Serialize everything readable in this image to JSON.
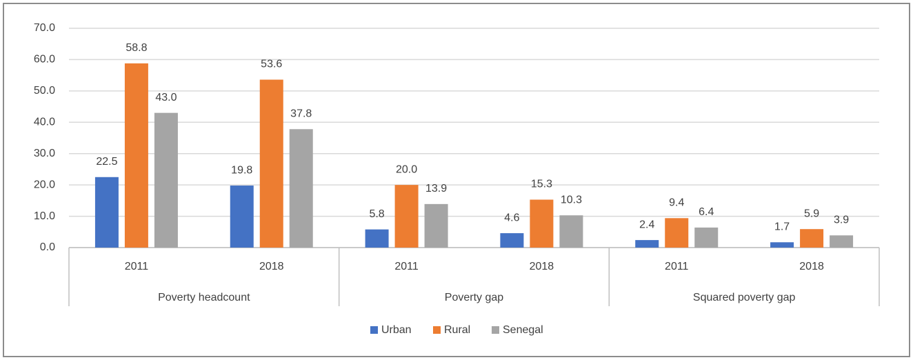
{
  "chart_data": {
    "type": "bar",
    "categories": [
      "2011",
      "2018",
      "2011",
      "2018",
      "2011",
      "2018"
    ],
    "category_groups": [
      "Poverty headcount",
      "Poverty gap",
      "Squared poverty gap"
    ],
    "series": [
      {
        "name": "Urban",
        "color": "#4472c4",
        "values": [
          22.5,
          19.8,
          5.8,
          4.6,
          2.4,
          1.7
        ],
        "value_labels": [
          "22.5",
          "19.8",
          "5.8",
          "4.6",
          "2.4",
          "1.7"
        ]
      },
      {
        "name": "Rural",
        "color": "#ed7d31",
        "values": [
          58.8,
          53.6,
          20.0,
          15.3,
          9.4,
          5.9
        ],
        "value_labels": [
          "58.8",
          "53.6",
          "20.0",
          "15.3",
          "9.4",
          "5.9"
        ]
      },
      {
        "name": "Senegal",
        "color": "#a5a5a5",
        "values": [
          43.0,
          37.8,
          13.9,
          10.3,
          6.4,
          3.9
        ],
        "value_labels": [
          "43.0",
          "37.8",
          "13.9",
          "10.3",
          "6.4",
          "3.9"
        ]
      }
    ],
    "ylim": [
      0,
      70
    ],
    "yticks": [
      {
        "value": 0,
        "label": "0.0"
      },
      {
        "value": 10,
        "label": "10.0"
      },
      {
        "value": 20,
        "label": "20.0"
      },
      {
        "value": 30,
        "label": "30.0"
      },
      {
        "value": 40,
        "label": "40.0"
      },
      {
        "value": 50,
        "label": "50.0"
      },
      {
        "value": 60,
        "label": "60.0"
      },
      {
        "value": 70,
        "label": "70.0"
      }
    ],
    "grid": true,
    "legend": "bottom"
  }
}
